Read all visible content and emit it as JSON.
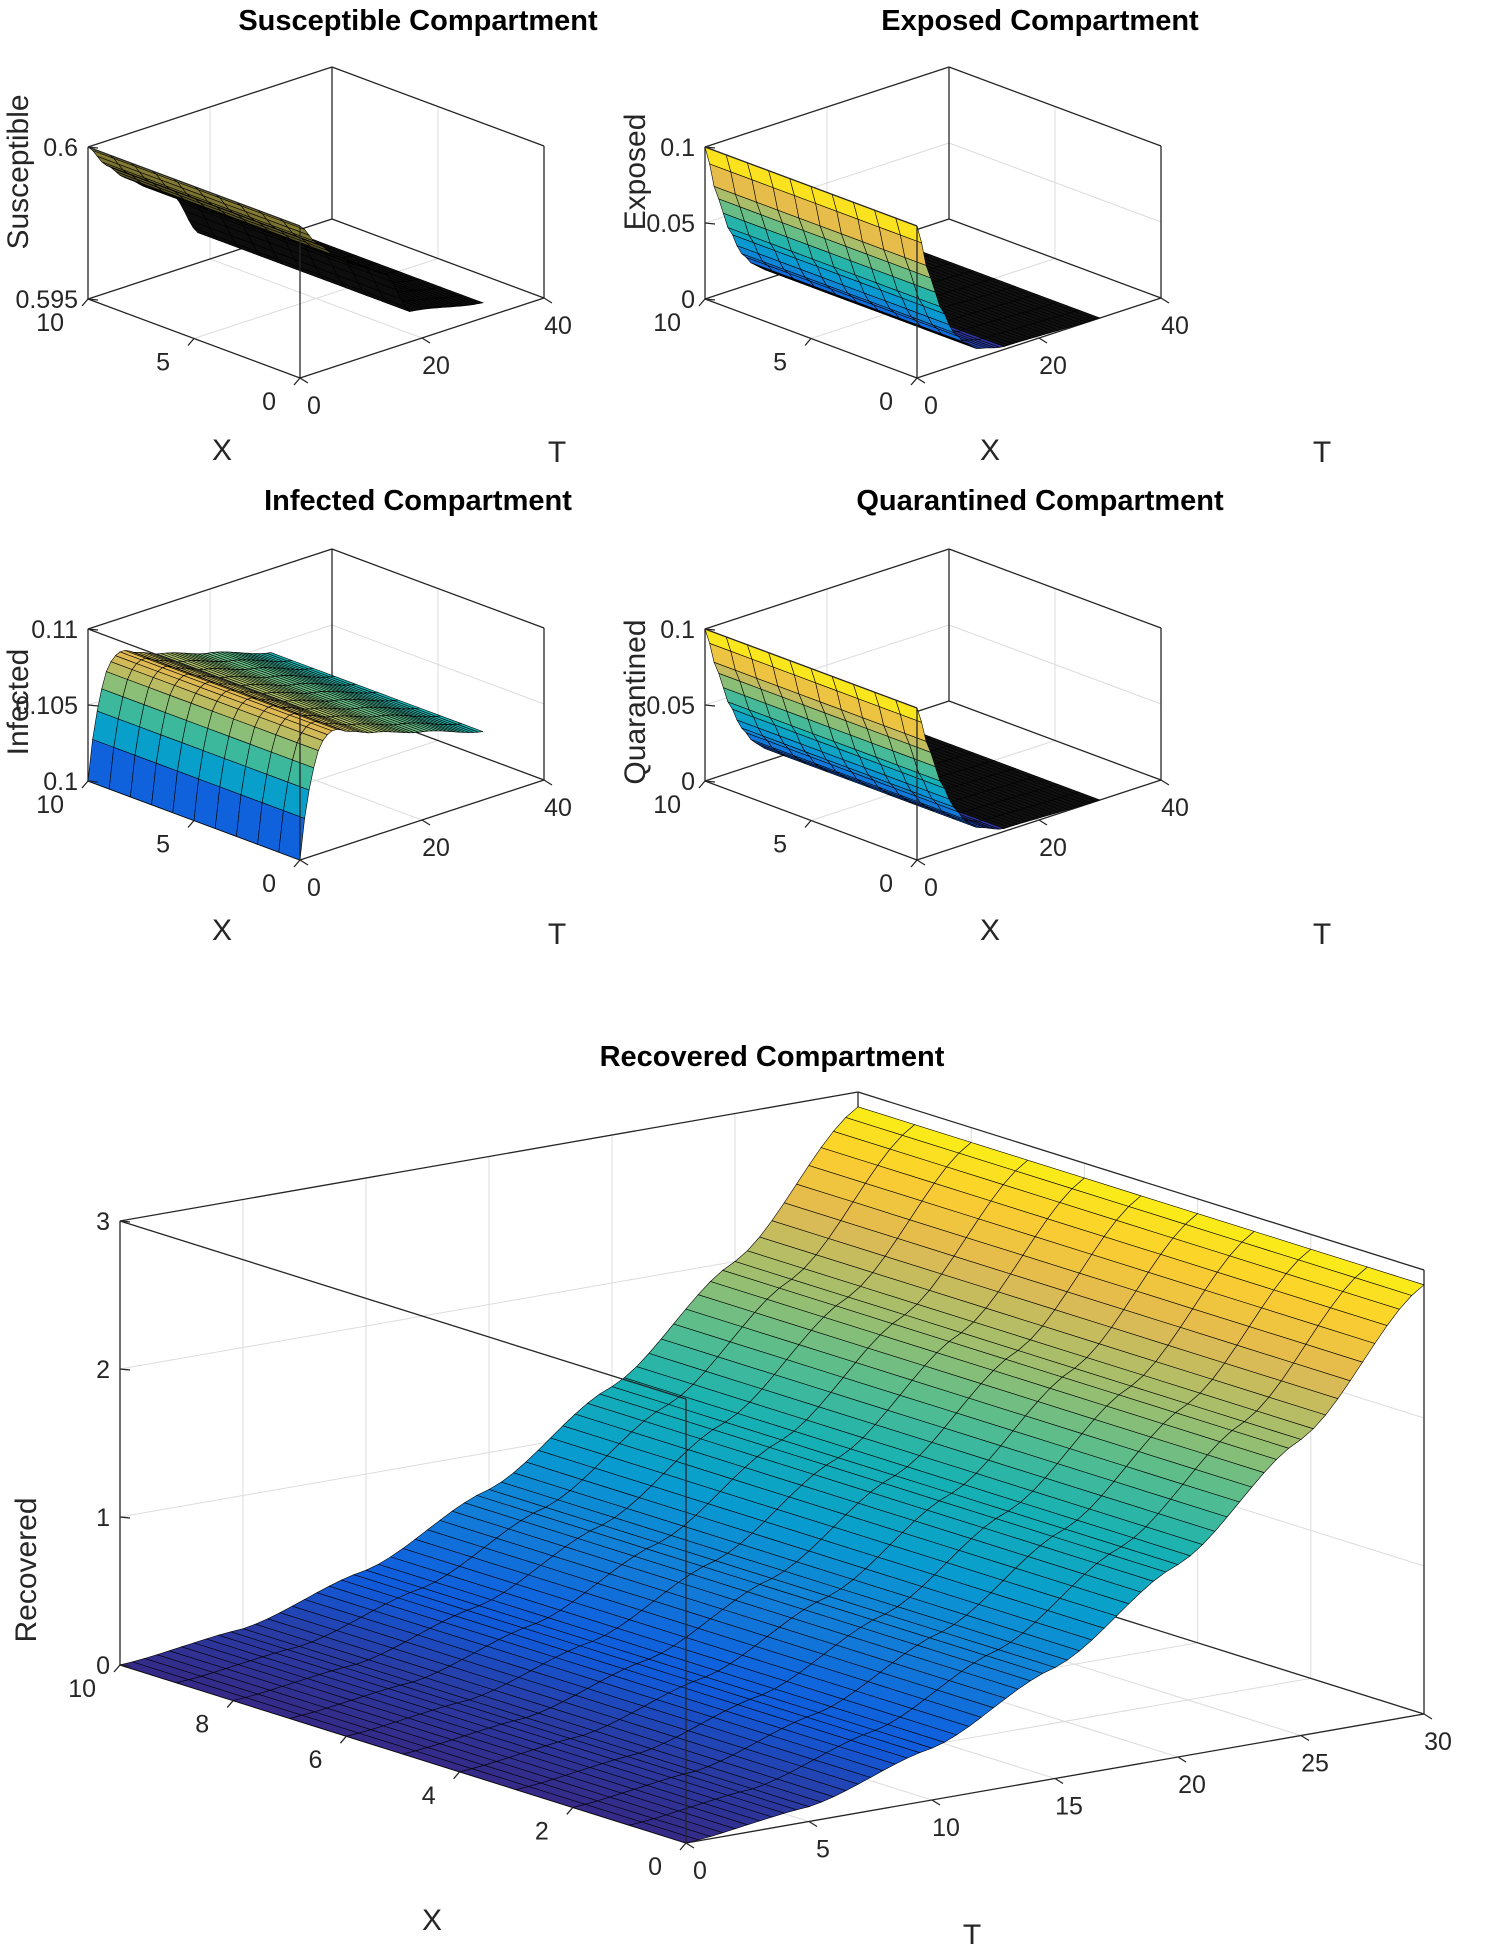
{
  "figure": {
    "colormap": "parula",
    "edge_color": "#000000"
  },
  "chart_data": [
    {
      "id": "susceptible",
      "type": "surface",
      "title": "Susceptible Compartment",
      "xlabel": "X",
      "ylabel": "T",
      "zlabel": "Susceptible",
      "xlim": [
        0,
        10
      ],
      "ylim": [
        0,
        40
      ],
      "zlim": [
        0.595,
        0.6
      ],
      "xticks": [
        0,
        5,
        10
      ],
      "yticks": [
        0,
        20,
        40
      ],
      "zticks": [
        0.595,
        0.6
      ],
      "xtick_labels": [
        "0",
        "5",
        "10"
      ],
      "ytick_labels": [
        "0",
        "20",
        "40"
      ],
      "ztick_labels": [
        "0.595",
        "0.6"
      ],
      "t_max": 30,
      "description_profile": {
        "t": [
          0,
          3,
          6,
          10,
          14,
          18,
          30
        ],
        "z": [
          0.6,
          0.5992,
          0.5986,
          0.598,
          0.5975,
          0.596,
          0.5955
        ]
      },
      "x_profile": "constant"
    },
    {
      "id": "exposed",
      "type": "surface",
      "title": "Exposed Compartment",
      "xlabel": "X",
      "ylabel": "T",
      "zlabel": "Exposed",
      "xlim": [
        0,
        10
      ],
      "ylim": [
        0,
        40
      ],
      "zlim": [
        0,
        0.1
      ],
      "xticks": [
        0,
        5,
        10
      ],
      "yticks": [
        0,
        20,
        40
      ],
      "zticks": [
        0,
        0.05,
        0.1
      ],
      "xtick_labels": [
        "0",
        "5",
        "10"
      ],
      "ytick_labels": [
        "0",
        "20",
        "40"
      ],
      "ztick_labels": [
        "0",
        "0.05",
        "0.1"
      ],
      "t_max": 30,
      "description_profile": {
        "t": [
          0,
          2,
          4,
          6,
          8,
          10,
          14,
          30
        ],
        "z": [
          0.1,
          0.065,
          0.04,
          0.022,
          0.012,
          0.006,
          0.002,
          0.0
        ]
      },
      "x_profile": "constant"
    },
    {
      "id": "infected",
      "type": "surface",
      "title": "Infected Compartment",
      "xlabel": "X",
      "ylabel": "T",
      "zlabel": "Infected",
      "xlim": [
        0,
        10
      ],
      "ylim": [
        0,
        40
      ],
      "zlim": [
        0.1,
        0.11
      ],
      "xticks": [
        0,
        5,
        10
      ],
      "yticks": [
        0,
        20,
        40
      ],
      "zticks": [
        0.1,
        0.105,
        0.11
      ],
      "xtick_labels": [
        "0",
        "5",
        "10"
      ],
      "ytick_labels": [
        "0",
        "20",
        "40"
      ],
      "ztick_labels": [
        "0.1",
        "0.105",
        "0.11"
      ],
      "t_max": 30,
      "description_profile": {
        "t": [
          0,
          1,
          2,
          3,
          4,
          5,
          6,
          8,
          12,
          20,
          30
        ],
        "z": [
          0.1,
          0.1033,
          0.1055,
          0.1068,
          0.1075,
          0.1078,
          0.1078,
          0.1074,
          0.1068,
          0.1058,
          0.1045
        ]
      },
      "x_profile": "constant"
    },
    {
      "id": "quarantined",
      "type": "surface",
      "title": "Quarantined Compartment",
      "xlabel": "X",
      "ylabel": "T",
      "zlabel": "Quarantined",
      "xlim": [
        0,
        10
      ],
      "ylim": [
        0,
        40
      ],
      "zlim": [
        0,
        0.1
      ],
      "xticks": [
        0,
        5,
        10
      ],
      "yticks": [
        0,
        20,
        40
      ],
      "zticks": [
        0,
        0.05,
        0.1
      ],
      "xtick_labels": [
        "0",
        "5",
        "10"
      ],
      "ytick_labels": [
        "0",
        "20",
        "40"
      ],
      "ztick_labels": [
        "0",
        "0.05",
        "0.1"
      ],
      "t_max": 30,
      "description_profile": {
        "t": [
          0,
          2,
          4,
          6,
          8,
          10,
          14,
          30
        ],
        "z": [
          0.1,
          0.07,
          0.045,
          0.027,
          0.015,
          0.008,
          0.002,
          0.0
        ]
      },
      "x_profile": "constant"
    },
    {
      "id": "recovered",
      "type": "surface",
      "title": "Recovered Compartment",
      "xlabel": "X",
      "ylabel": "T",
      "zlabel": "Recovered",
      "xlim": [
        0,
        10
      ],
      "ylim": [
        0,
        30
      ],
      "zlim": [
        0,
        3
      ],
      "xticks": [
        0,
        2,
        4,
        6,
        8,
        10
      ],
      "yticks": [
        0,
        5,
        10,
        15,
        20,
        25,
        30
      ],
      "zticks": [
        0,
        1,
        2,
        3
      ],
      "xtick_labels": [
        "0",
        "2",
        "4",
        "6",
        "8",
        "10"
      ],
      "ytick_labels": [
        "0",
        "5",
        "10",
        "15",
        "20",
        "25",
        "30"
      ],
      "ztick_labels": [
        "0",
        "1",
        "2",
        "3"
      ],
      "t_max": 30,
      "description_profile": {
        "t": [
          0,
          5,
          10,
          15,
          20,
          25,
          30
        ],
        "z": [
          0.0,
          0.1,
          0.35,
          0.75,
          1.3,
          2.0,
          2.9
        ]
      },
      "x_profile": "constant"
    }
  ]
}
